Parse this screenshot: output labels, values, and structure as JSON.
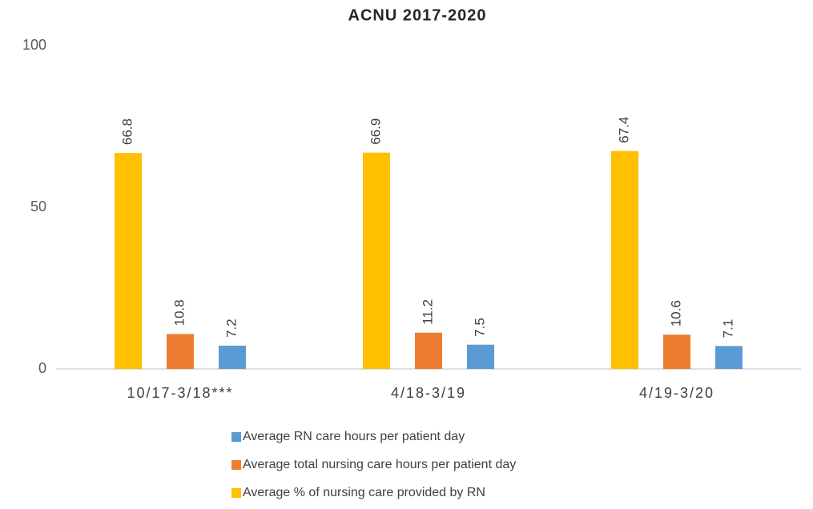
{
  "chart_data": {
    "type": "bar",
    "title": "ACNU 2017-2020",
    "categories": [
      "10/17-3/18***",
      "4/18-3/19",
      "4/19-3/20"
    ],
    "series": [
      {
        "name": "Average RN care hours per patient day",
        "color": "#5b9bd5",
        "values": [
          7.2,
          7.5,
          7.1
        ]
      },
      {
        "name": "Average total nursing care hours per patient day",
        "color": "#ed7d31",
        "values": [
          10.8,
          11.2,
          10.6
        ]
      },
      {
        "name": "Average % of nursing care provided by RN",
        "color": "#ffc000",
        "values": [
          66.8,
          66.9,
          67.4
        ]
      }
    ],
    "ylim": [
      0,
      100
    ],
    "yticks": [
      0,
      50,
      100
    ],
    "grid": false,
    "legend": "bottom"
  }
}
